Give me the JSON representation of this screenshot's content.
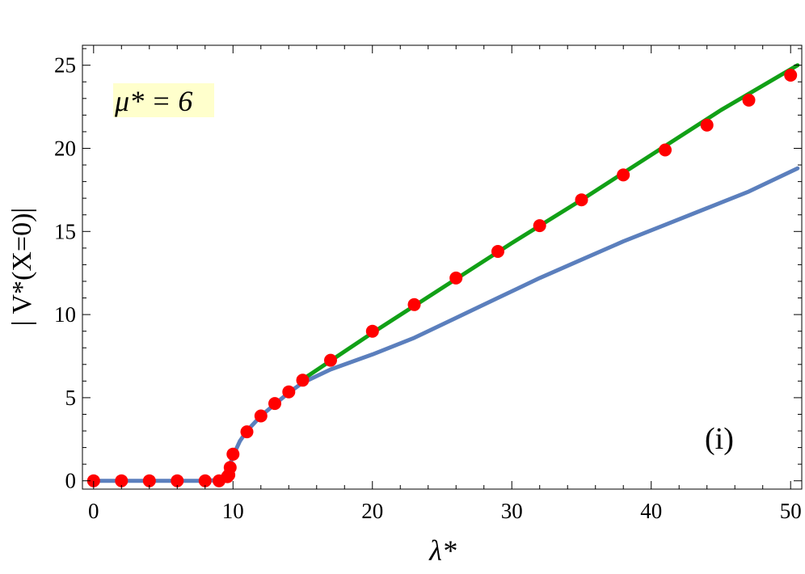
{
  "chart_data": {
    "type": "line",
    "xlabel": "λ*",
    "ylabel": "| V*(X=0)|",
    "xlim": [
      -0.8,
      50.8
    ],
    "ylim": [
      -0.5,
      26.2
    ],
    "xticks": [
      0,
      10,
      20,
      30,
      40,
      50
    ],
    "yticks": [
      0,
      5,
      10,
      15,
      20,
      25
    ],
    "grid": false,
    "annotations": {
      "parameter": "μ* = 6",
      "panel": "(i)"
    },
    "colors": {
      "blue_curve": "#5b7fbd",
      "green_curve": "#11a016",
      "points": "#ff0000",
      "annotation_bg": "#ffffcc"
    },
    "series": [
      {
        "kind": "line",
        "color": "#5b7fbd",
        "x": [
          0,
          2,
          4,
          6,
          8,
          9,
          9.5,
          10,
          10.5,
          11,
          12,
          13,
          14,
          15,
          17,
          20,
          23,
          26,
          29,
          32,
          35,
          38,
          41,
          44,
          47,
          50.5
        ],
        "y": [
          0,
          0,
          0,
          0,
          0,
          0.05,
          0.3,
          1.5,
          2.4,
          3.0,
          3.9,
          4.6,
          5.3,
          5.9,
          6.7,
          7.6,
          8.6,
          9.8,
          11.0,
          12.2,
          13.3,
          14.4,
          15.4,
          16.4,
          17.4,
          18.8
        ]
      },
      {
        "kind": "line",
        "color": "#11a016",
        "x": [
          15,
          20,
          25,
          30,
          35,
          40,
          45,
          50.5
        ],
        "y": [
          6.1,
          8.9,
          11.6,
          14.3,
          16.9,
          19.6,
          22.3,
          25.0
        ]
      },
      {
        "kind": "scatter",
        "color": "#ff0000",
        "x": [
          0,
          2,
          4,
          6,
          8,
          9,
          9.6,
          9.7,
          9.8,
          10,
          11,
          12,
          13,
          14,
          15,
          17,
          20,
          23,
          26,
          29,
          32,
          35,
          38,
          41,
          44,
          47,
          50
        ],
        "y": [
          0,
          0,
          0,
          0,
          0,
          0,
          0.25,
          0.35,
          0.8,
          1.6,
          2.95,
          3.9,
          4.65,
          5.35,
          6.05,
          7.25,
          9.0,
          10.6,
          12.2,
          13.8,
          15.35,
          16.9,
          18.4,
          19.9,
          21.4,
          22.9,
          24.4
        ]
      }
    ]
  }
}
